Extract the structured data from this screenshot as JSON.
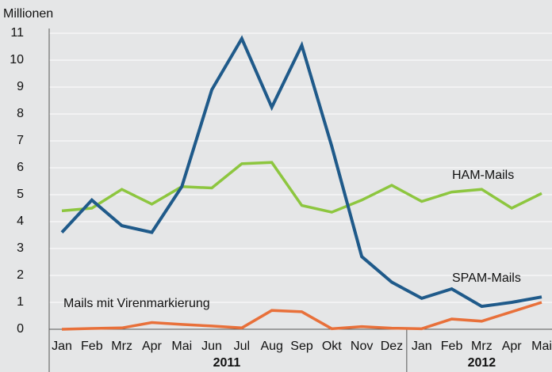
{
  "chart_data": {
    "type": "line",
    "ylabel": "Millionen",
    "categories": [
      "Jan",
      "Feb",
      "Mrz",
      "Apr",
      "Mai",
      "Jun",
      "Jul",
      "Aug",
      "Sep",
      "Okt",
      "Nov",
      "Dez",
      "Jan",
      "Feb",
      "Mrz",
      "Apr",
      "Mai"
    ],
    "groups": [
      {
        "label": "2011",
        "count": 12
      },
      {
        "label": "2012",
        "count": 5
      }
    ],
    "series": [
      {
        "name": "SPAM-Mails",
        "color": "#1f5a8a",
        "values": [
          3.6,
          4.8,
          3.85,
          3.6,
          5.3,
          8.9,
          10.8,
          8.25,
          10.55,
          6.8,
          2.7,
          1.75,
          1.15,
          1.5,
          0.85,
          1.0,
          1.2
        ]
      },
      {
        "name": "HAM-Mails",
        "color": "#8dc63f",
        "values": [
          4.4,
          4.5,
          5.2,
          4.65,
          5.3,
          5.25,
          6.15,
          6.2,
          4.6,
          4.35,
          4.8,
          5.35,
          4.75,
          5.1,
          5.2,
          4.5,
          5.05
        ]
      },
      {
        "name": "Mails mit Virenmarkierung",
        "color": "#e8703a",
        "values": [
          0,
          0.03,
          0.05,
          0.25,
          0.18,
          0.12,
          0.05,
          0.7,
          0.65,
          0.02,
          0.1,
          0.04,
          0.02,
          0.38,
          0.3,
          0.65,
          1.0
        ]
      }
    ],
    "ylim": [
      0,
      11
    ],
    "yticks": [
      0,
      1,
      2,
      3,
      4,
      5,
      6,
      7,
      8,
      9,
      10,
      11
    ],
    "grid": true
  }
}
